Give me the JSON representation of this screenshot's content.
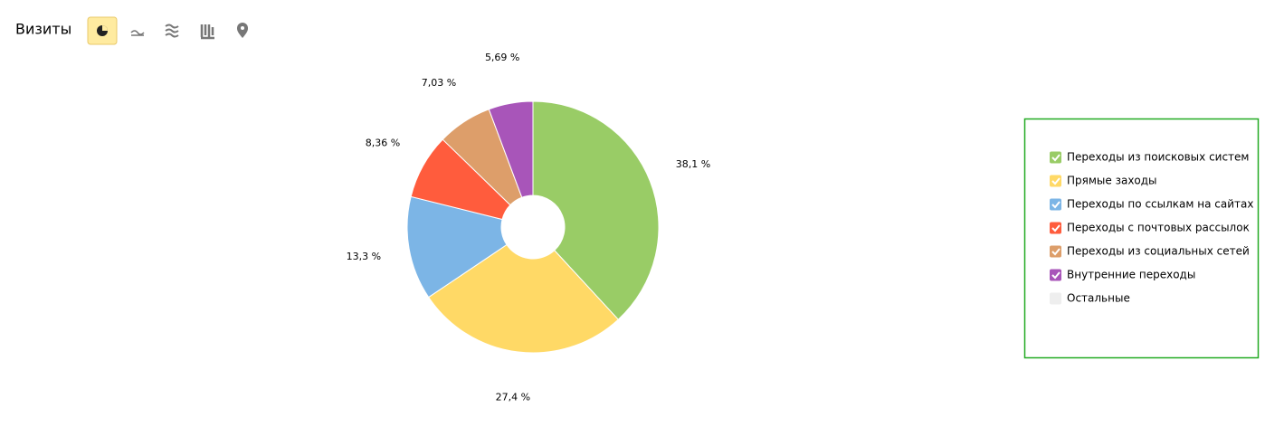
{
  "chart_data": {
    "type": "donut",
    "title": "Визиты",
    "categories": [
      "Переходы из поисковых систем",
      "Прямые заходы",
      "Переходы по ссылкам на сайтах",
      "Переходы с почтовых рассылок",
      "Переходы из социальных сетей",
      "Внутренние переходы",
      "Остальные"
    ],
    "values": [
      38.1,
      27.4,
      13.3,
      8.36,
      7.03,
      5.69,
      null
    ],
    "value_labels": [
      "38,1 %",
      "27,4 %",
      "13,3 %",
      "8,36 %",
      "7,03 %",
      "5,69 %",
      null
    ],
    "colors": [
      "#99cc66",
      "#ffd966",
      "#7cb5e6",
      "#ff5c3d",
      "#dd9e6a",
      "#a855b9",
      "#eeeeee"
    ],
    "legend": "right"
  }
}
